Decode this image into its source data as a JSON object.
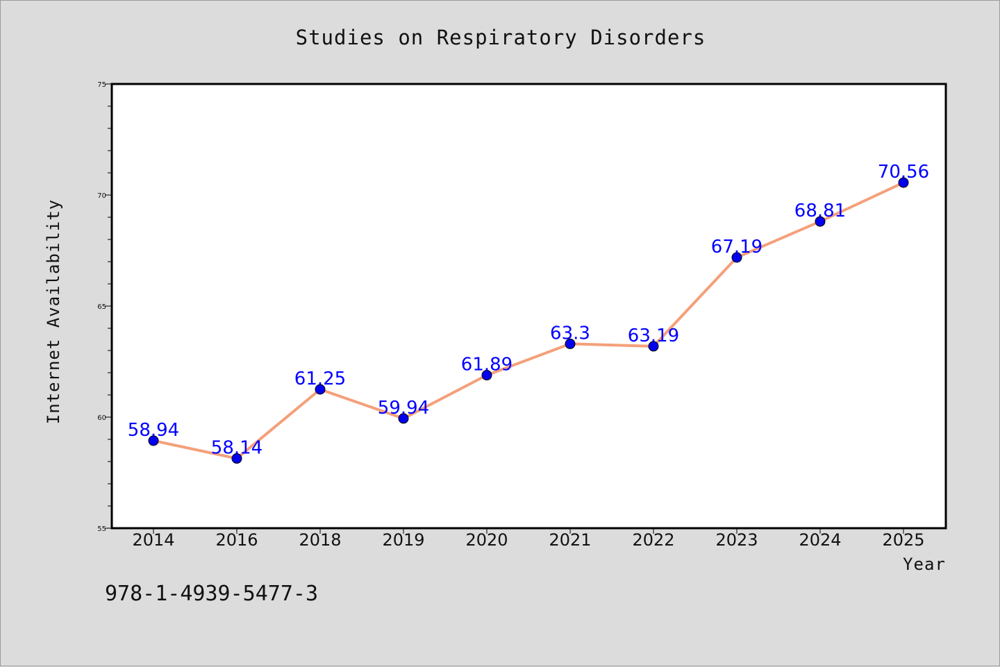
{
  "chart_data": {
    "type": "line",
    "title": "Studies on Respiratory Disorders",
    "xlabel": "Year",
    "ylabel": "Internet Availability",
    "categories": [
      "2014",
      "2016",
      "2018",
      "2019",
      "2020",
      "2021",
      "2022",
      "2023",
      "2024",
      "2025"
    ],
    "values": [
      58.94,
      58.14,
      61.25,
      59.94,
      61.89,
      63.3,
      63.19,
      67.19,
      68.81,
      70.56
    ],
    "data_labels": [
      "58.94",
      "58.14",
      "61.25",
      "59.94",
      "61.89",
      "63.3",
      "63.19",
      "67.19",
      "68.81",
      "70.56"
    ],
    "ylim": [
      55,
      75
    ],
    "yticks": [
      "55",
      "60",
      "65",
      "70",
      "75"
    ],
    "grid": false,
    "line_color": "#f4a07a",
    "marker_color": "#0000ee",
    "label_color": "#0000ff",
    "background_color": "#dcdcdc",
    "plot_background_color": "#ffffff"
  },
  "footer": {
    "isbn": "978-1-4939-5477-3"
  }
}
